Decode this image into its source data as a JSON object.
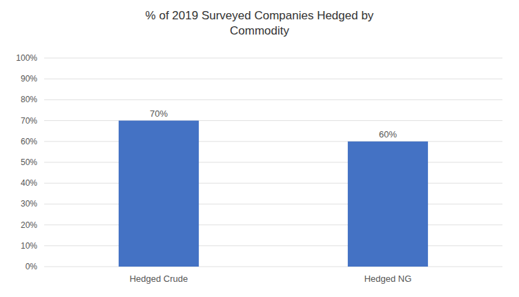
{
  "chart_data": {
    "type": "bar",
    "title": "% of 2019 Surveyed Companies Hedged by\nCommodity",
    "categories": [
      "Hedged Crude",
      "Hedged NG"
    ],
    "values": [
      0.7,
      0.6
    ],
    "value_labels": [
      "70%",
      "60%"
    ],
    "data_labels": true,
    "color": "#4472C4",
    "ylim": [
      0,
      1.0
    ],
    "yticks": [
      {
        "value": 0.0,
        "label": "0%"
      },
      {
        "value": 0.1,
        "label": "10%"
      },
      {
        "value": 0.2,
        "label": "20%"
      },
      {
        "value": 0.3,
        "label": "30%"
      },
      {
        "value": 0.4,
        "label": "40%"
      },
      {
        "value": 0.5,
        "label": "50%"
      },
      {
        "value": 0.6,
        "label": "60%"
      },
      {
        "value": 0.7,
        "label": "70%"
      },
      {
        "value": 0.8,
        "label": "80%"
      },
      {
        "value": 0.9,
        "label": "90%"
      },
      {
        "value": 1.0,
        "label": "100%"
      }
    ],
    "grid": true
  }
}
